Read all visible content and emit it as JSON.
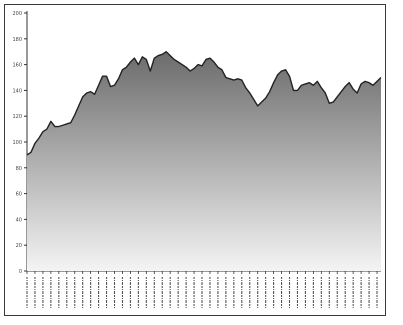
{
  "chart_data": {
    "type": "area",
    "title": "",
    "xlabel": "",
    "ylabel": "",
    "ylim": [
      0,
      200
    ],
    "y_ticks": [
      0,
      20,
      40,
      60,
      80,
      100,
      120,
      140,
      160,
      180,
      200
    ],
    "grid": false,
    "legend": "none",
    "fill_gradient": {
      "top": "#6b6b6b",
      "bottom": "#f4f4f4"
    },
    "line_color": "#222222",
    "x_labels_note": "rotated date tick labels, not legible",
    "series": [
      {
        "values": [
          90,
          92,
          99,
          103,
          108,
          110,
          116,
          112,
          112,
          113,
          114,
          115,
          121,
          128,
          135,
          138,
          139,
          137,
          144,
          151,
          151,
          143,
          144,
          149,
          156,
          158,
          162,
          165,
          160,
          166,
          164,
          155,
          165,
          167,
          168,
          170,
          167,
          164,
          162,
          160,
          158,
          155,
          157,
          160,
          159,
          164,
          165,
          162,
          158,
          156,
          150,
          149,
          148,
          149,
          148,
          142,
          138,
          133,
          128,
          131,
          134,
          139,
          146,
          152,
          155,
          156,
          151,
          140,
          140,
          144,
          145,
          146,
          144,
          147,
          142,
          138,
          130,
          131,
          135,
          139,
          143,
          146,
          141,
          138,
          145,
          147,
          146,
          144,
          147,
          150
        ]
      }
    ]
  }
}
